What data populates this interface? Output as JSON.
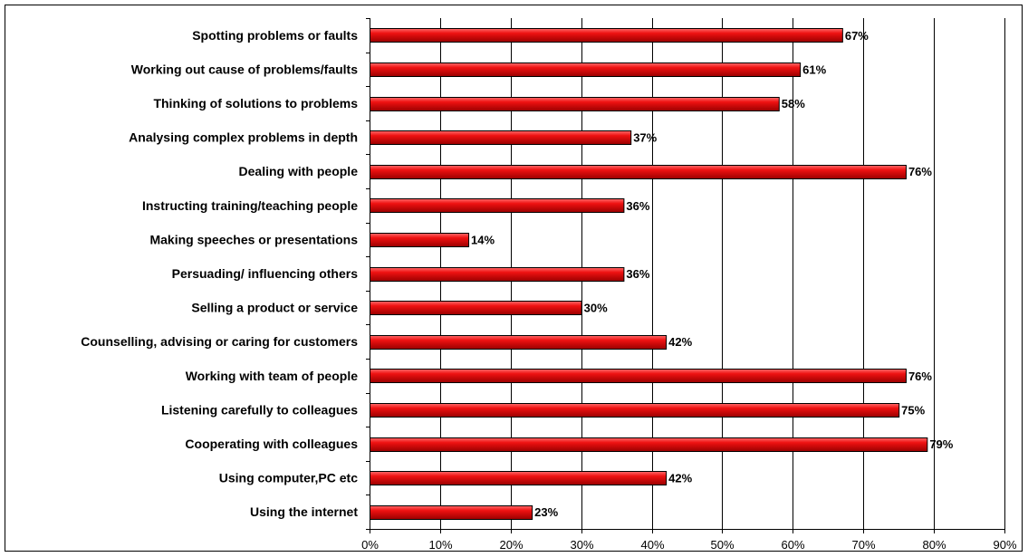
{
  "chart_data": {
    "type": "bar",
    "orientation": "horizontal",
    "categories": [
      "Spotting problems or faults",
      "Working out cause of problems/faults",
      "Thinking of solutions to problems",
      "Analysing complex problems in depth",
      "Dealing with people",
      "Instructing training/teaching people",
      "Making speeches or presentations",
      "Persuading/ influencing others",
      "Selling a product or service",
      "Counselling, advising or caring for customers",
      "Working with team of people",
      "Listening carefully to colleagues",
      "Cooperating with colleagues",
      "Using computer,PC etc",
      "Using the internet"
    ],
    "values": [
      67,
      61,
      58,
      37,
      76,
      36,
      14,
      36,
      30,
      42,
      76,
      75,
      79,
      42,
      23
    ],
    "value_labels": [
      "67%",
      "61%",
      "58%",
      "37%",
      "76%",
      "36%",
      "14%",
      "36%",
      "30%",
      "42%",
      "76%",
      "75%",
      "79%",
      "42%",
      "23%"
    ],
    "xlim": [
      0,
      90
    ],
    "x_ticks": [
      0,
      10,
      20,
      30,
      40,
      50,
      60,
      70,
      80,
      90
    ],
    "x_tick_labels": [
      "0%",
      "10%",
      "20%",
      "30%",
      "40%",
      "50%",
      "60%",
      "70%",
      "80%",
      "90%"
    ],
    "title": "",
    "xlabel": "",
    "ylabel": "",
    "grid": true,
    "legend": "none",
    "colors": {
      "bar_fill": "#ee1111",
      "bar_dark": "#9a0000",
      "bar_highlight": "#ff6a6a",
      "bar_edge": "#000000",
      "grid": "#000000",
      "frame": "#000000"
    }
  }
}
